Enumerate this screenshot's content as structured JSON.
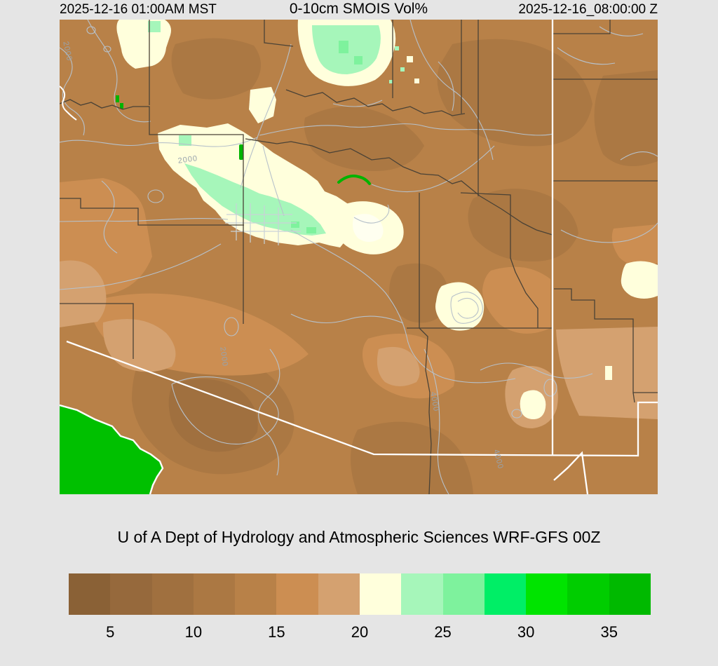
{
  "header": {
    "left_timestamp": "2025-12-16 01:00AM MST",
    "title": "0-10cm SMOIS Vol%",
    "right_timestamp": "2025-12-16_08:00:00 Z"
  },
  "credit": "U of A Dept of Hydrology and Atmospheric Sciences WRF-GFS 00Z",
  "map": {
    "description": "WRF-GFS 0-10cm volumetric soil moisture shaded map over Arizona and surrounding region",
    "contour_labels": [
      "2000",
      "2000",
      "2000",
      "4000",
      "4000"
    ],
    "colors": {
      "background": "#e5e5e5",
      "base_soil": "#b88148",
      "dry_soil": "#a0703f",
      "moist_cream": "#ffffdc",
      "moist_mint": "#a6f6ba",
      "water_green": "#00c000",
      "state_border": "#ffffff",
      "county_line": "#4a4236",
      "road_contour_grey": "#b7c1ca"
    }
  },
  "colorbar": {
    "unit": "Vol%",
    "ticks": [
      "5",
      "10",
      "15",
      "20",
      "25",
      "30",
      "35"
    ],
    "tick_values": [
      5,
      10,
      15,
      20,
      25,
      30,
      35
    ],
    "range": [
      2.5,
      37.5
    ],
    "segment_step": 2.5,
    "segment_colors": [
      "#8a6136",
      "#96693c",
      "#a0703f",
      "#ab7843",
      "#b88148",
      "#cc8e52",
      "#d4a170",
      "#ffffdc",
      "#a6f6ba",
      "#7ef29d",
      "#00ee66",
      "#00e400",
      "#00cd00",
      "#00b900"
    ]
  }
}
